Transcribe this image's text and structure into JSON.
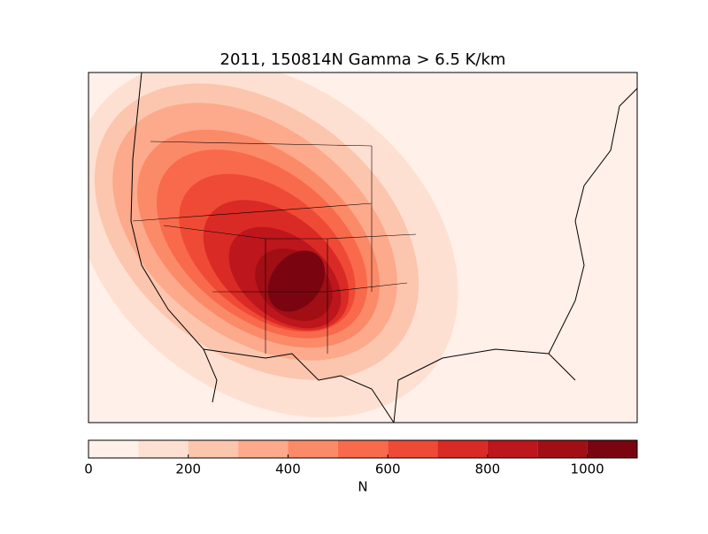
{
  "chart_data": {
    "type": "contour-map",
    "title": "2011, 150814N Gamma > 6.5 K/km",
    "colorbar": {
      "label": "N",
      "levels": [
        0,
        100,
        200,
        300,
        400,
        500,
        600,
        700,
        800,
        900,
        1000,
        1100
      ],
      "colors": [
        "#fff0e9",
        "#fee0d2",
        "#fcc5ae",
        "#fca98c",
        "#fb8a69",
        "#f86a4b",
        "#ef4a36",
        "#d92a25",
        "#bd161c",
        "#a10f15",
        "#7a0510"
      ],
      "lim": [
        0,
        1100
      ],
      "ticks": [
        0,
        200,
        400,
        600,
        800,
        1000
      ]
    }
  }
}
